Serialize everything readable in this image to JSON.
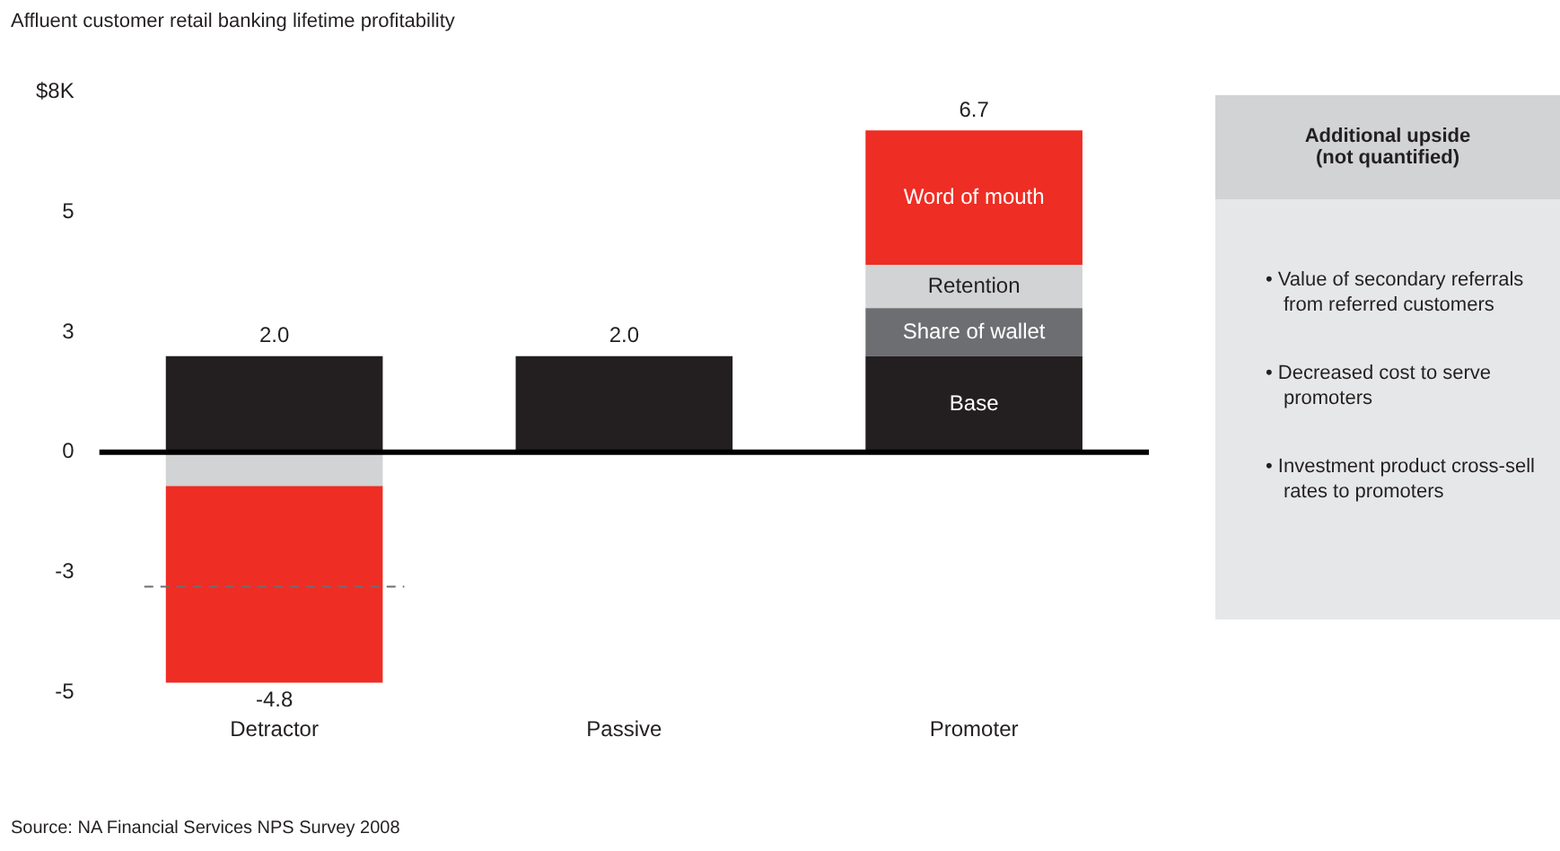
{
  "chart_data": [
    {
      "type": "bar",
      "title": "Affluent customer retail banking lifetime profitability",
      "stacked": true,
      "categories": [
        "Detractor",
        "Passive",
        "Promoter"
      ],
      "series": [
        {
          "name": "Base",
          "color": "#231f20",
          "values": [
            2.0,
            2.0,
            2.0
          ],
          "value_labels": [
            "2.0",
            "2.0",
            null
          ]
        },
        {
          "name": "Share of wallet",
          "color": "#6d6e71",
          "values": [
            null,
            null,
            1.0
          ]
        },
        {
          "name": "Retention",
          "color": "#d1d3d4",
          "values": [
            -0.7,
            null,
            0.9
          ]
        },
        {
          "name": "Word of mouth",
          "color": "#ee2d24",
          "values": [
            -4.1,
            null,
            2.8
          ]
        }
      ],
      "ylim": [
        -5,
        7.5
      ],
      "yticks": [
        {
          "value": -5,
          "label": "-5"
        },
        {
          "value": -2.5,
          "label": "-3"
        },
        0,
        {
          "value": 2.5,
          "label": "3"
        },
        5,
        {
          "value": 7.5,
          "label": "$8K"
        }
      ],
      "totals": [
        null,
        null,
        "6.7"
      ],
      "ref_lines": [
        {
          "axis": "y",
          "value": -2.8,
          "color": "#6d6e71",
          "line_style": "dashed"
        }
      ],
      "annotations": [
        {
          "text": "-4.8",
          "x": "Detractor",
          "y": -4.8
        },
        "Source: NA Financial Services NPS Survey 2008"
      ]
    },
    {
      "type": "other",
      "title": "Additional upside (not quantified)",
      "annotations": [
        "• Value of secondary referrals from referred customers",
        "• Decreased cost to serve promoters",
        "• Investment product cross-sell rates to promoters"
      ]
    }
  ]
}
